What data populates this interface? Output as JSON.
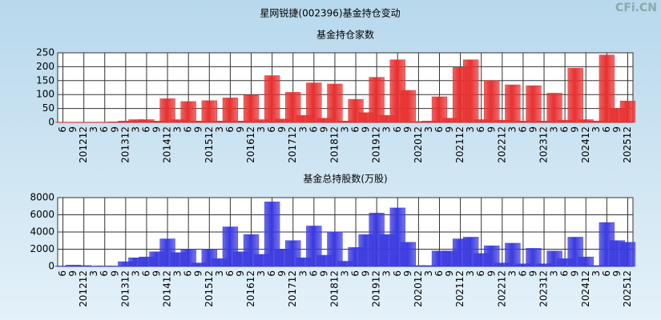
{
  "title": "星网锐捷(002396)基金持仓变动",
  "watermark": "CFi.CN",
  "chart_data": [
    {
      "type": "bar",
      "title": "基金持仓家数",
      "color": "#e83030",
      "categories": [
        "6",
        "9",
        "201212",
        "3",
        "6",
        "9",
        "201312",
        "3",
        "6",
        "9",
        "201412",
        "3",
        "6",
        "9",
        "201512",
        "3",
        "6",
        "9",
        "201612",
        "3",
        "6",
        "9",
        "201712",
        "3",
        "6",
        "9",
        "201812",
        "3",
        "6",
        "9",
        "201912",
        "3",
        "6",
        "9",
        "202012",
        "3",
        "6",
        "9",
        "202112",
        "3",
        "6",
        "9",
        "202212",
        "3",
        "6",
        "9",
        "202312",
        "3",
        "6",
        "9",
        "202412",
        "3",
        "6",
        "9",
        "202512"
      ],
      "values": [
        1,
        1,
        1,
        1,
        1,
        2,
        5,
        10,
        10,
        5,
        85,
        10,
        75,
        5,
        78,
        5,
        88,
        5,
        98,
        10,
        168,
        12,
        108,
        25,
        142,
        15,
        138,
        5,
        83,
        35,
        162,
        25,
        225,
        115,
        3,
        5,
        92,
        15,
        197,
        225,
        10,
        150,
        8,
        135,
        5,
        132,
        5,
        105,
        8,
        195,
        10,
        5,
        242,
        50,
        77
      ],
      "ylim": [
        0,
        250
      ],
      "yticks": [
        0,
        50,
        100,
        150,
        200,
        250
      ],
      "grid": true
    },
    {
      "type": "bar",
      "title": "基金总持股数(万股)",
      "color": "#3a3ae0",
      "categories": [
        "6",
        "9",
        "201212",
        "3",
        "6",
        "9",
        "201312",
        "3",
        "6",
        "9",
        "201412",
        "3",
        "6",
        "9",
        "201512",
        "3",
        "6",
        "9",
        "201612",
        "3",
        "6",
        "9",
        "201712",
        "3",
        "6",
        "9",
        "201812",
        "3",
        "6",
        "9",
        "201912",
        "3",
        "6",
        "9",
        "202012",
        "3",
        "6",
        "9",
        "202112",
        "3",
        "6",
        "9",
        "202212",
        "3",
        "6",
        "9",
        "202312",
        "3",
        "6",
        "9",
        "202412",
        "3",
        "6",
        "9",
        "202512"
      ],
      "values": [
        50,
        150,
        100,
        50,
        50,
        50,
        550,
        1000,
        1100,
        1700,
        3200,
        1600,
        2000,
        400,
        2000,
        900,
        4600,
        1700,
        3700,
        1400,
        7500,
        2000,
        3000,
        1000,
        4700,
        1300,
        4000,
        600,
        2200,
        3700,
        6200,
        3700,
        6800,
        2800,
        100,
        100,
        1800,
        1800,
        3200,
        3400,
        1500,
        2400,
        400,
        2700,
        300,
        2100,
        300,
        1800,
        900,
        3400,
        1100,
        100,
        5100,
        3000,
        2800
      ],
      "ylim": [
        0,
        8000
      ],
      "yticks": [
        0,
        2000,
        4000,
        6000,
        8000
      ],
      "grid": true
    }
  ]
}
